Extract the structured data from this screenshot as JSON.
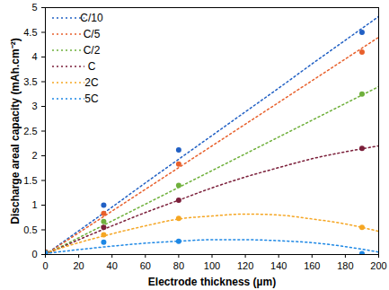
{
  "chart_data": {
    "type": "scatter",
    "x_label": "Electrode thickness (µm)",
    "y_label": "Discharge areal capacity (mAh.cm⁻²)",
    "xlim": [
      0,
      200
    ],
    "xticks": [
      0,
      20,
      40,
      60,
      80,
      100,
      120,
      140,
      160,
      180,
      200
    ],
    "ylim": [
      0,
      5
    ],
    "yticks": [
      0,
      0.5,
      1,
      1.5,
      2,
      2.5,
      3,
      3.5,
      4,
      4.5,
      5
    ],
    "legend": "upper left",
    "series": [
      {
        "name": "C/10",
        "color": "#2160c4",
        "marker": "circle",
        "line_style": "dotted",
        "x": [
          0,
          35,
          80,
          190
        ],
        "values": [
          0.05,
          1.0,
          2.12,
          4.5
        ],
        "fit": {
          "x": [
            0,
            20,
            40,
            60,
            80,
            100,
            120,
            140,
            160,
            180,
            200
          ],
          "values": [
            0,
            0.48,
            0.96,
            1.45,
            1.93,
            2.41,
            2.89,
            3.37,
            3.86,
            4.34,
            4.82
          ]
        }
      },
      {
        "name": "C/5",
        "color": "#e8602c",
        "marker": "circle",
        "line_style": "dotted",
        "x": [
          0,
          35,
          80,
          190
        ],
        "values": [
          0.05,
          0.83,
          1.83,
          4.1
        ],
        "fit": {
          "x": [
            0,
            20,
            40,
            60,
            80,
            100,
            120,
            140,
            160,
            180,
            200
          ],
          "values": [
            0,
            0.44,
            0.88,
            1.32,
            1.76,
            2.2,
            2.64,
            3.08,
            3.52,
            3.96,
            4.4
          ]
        }
      },
      {
        "name": "C/2",
        "color": "#6fb03c",
        "marker": "circle",
        "line_style": "dotted",
        "x": [
          0,
          35,
          80,
          190
        ],
        "values": [
          0.05,
          0.67,
          1.4,
          3.25
        ],
        "fit": {
          "x": [
            0,
            20,
            40,
            60,
            80,
            100,
            120,
            140,
            160,
            180,
            200
          ],
          "values": [
            0,
            0.34,
            0.68,
            1.02,
            1.36,
            1.7,
            2.04,
            2.38,
            2.72,
            3.06,
            3.4
          ]
        }
      },
      {
        "name": "C",
        "color": "#7b1f3a",
        "marker": "circle",
        "line_style": "dotted",
        "x": [
          0,
          35,
          80,
          190
        ],
        "values": [
          0.05,
          0.55,
          1.1,
          2.15
        ],
        "fit": {
          "x": [
            0,
            20,
            40,
            60,
            80,
            100,
            120,
            140,
            160,
            180,
            200
          ],
          "values": [
            0,
            0.3,
            0.58,
            0.85,
            1.1,
            1.35,
            1.57,
            1.76,
            1.94,
            2.08,
            2.2
          ]
        }
      },
      {
        "name": "2C",
        "color": "#f5a623",
        "marker": "circle",
        "line_style": "dotted",
        "x": [
          0,
          35,
          80,
          190
        ],
        "values": [
          0.04,
          0.4,
          0.73,
          0.55
        ],
        "fit": {
          "x": [
            0,
            20,
            40,
            60,
            80,
            100,
            120,
            140,
            160,
            180,
            200
          ],
          "values": [
            0.03,
            0.24,
            0.42,
            0.58,
            0.72,
            0.78,
            0.82,
            0.8,
            0.72,
            0.62,
            0.47
          ]
        }
      },
      {
        "name": "5C",
        "color": "#1e88e5",
        "marker": "circle",
        "line_style": "dotted",
        "x": [
          0,
          35,
          80,
          190
        ],
        "values": [
          0.03,
          0.25,
          0.27,
          0.02
        ],
        "fit": {
          "x": [
            0,
            20,
            40,
            60,
            80,
            100,
            120,
            140,
            160,
            180,
            200
          ],
          "values": [
            0.02,
            0.1,
            0.17,
            0.23,
            0.27,
            0.3,
            0.3,
            0.28,
            0.24,
            0.16,
            0.05
          ]
        }
      }
    ]
  }
}
